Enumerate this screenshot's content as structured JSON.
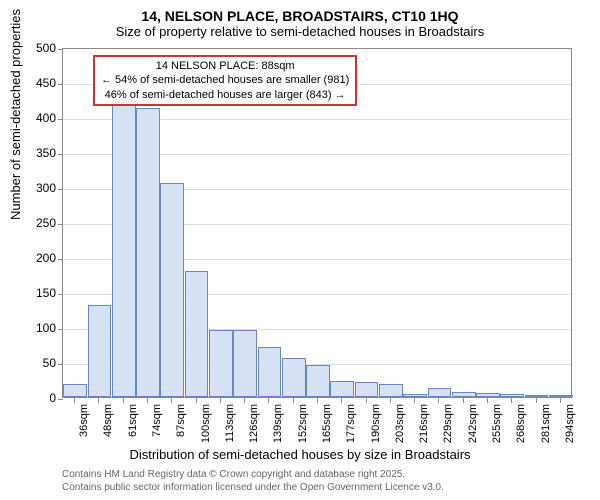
{
  "chart": {
    "type": "histogram",
    "title": "14, NELSON PLACE, BROADSTAIRS, CT10 1HQ",
    "subtitle": "Size of property relative to semi-detached houses in Broadstairs",
    "ylabel": "Number of semi-detached properties",
    "xlabel": "Distribution of semi-detached houses by size in Broadstairs",
    "ylim": [
      0,
      500
    ],
    "ytick_step": 50,
    "yticks": [
      0,
      50,
      100,
      150,
      200,
      250,
      300,
      350,
      400,
      450,
      500
    ],
    "categories": [
      "36sqm",
      "48sqm",
      "61sqm",
      "74sqm",
      "87sqm",
      "100sqm",
      "113sqm",
      "126sqm",
      "139sqm",
      "152sqm",
      "165sqm",
      "177sqm",
      "190sqm",
      "203sqm",
      "216sqm",
      "229sqm",
      "242sqm",
      "255sqm",
      "268sqm",
      "281sqm",
      "294sqm"
    ],
    "values": [
      18,
      132,
      418,
      413,
      306,
      180,
      96,
      96,
      71,
      56,
      46,
      23,
      21,
      19,
      5,
      13,
      7,
      6,
      5,
      3,
      3
    ],
    "bar_fill": "#d7e1f4",
    "bar_stroke": "#6a87c4",
    "grid_color": "#dddddd",
    "axis_color": "#888888",
    "background_color": "#ffffff",
    "callout": {
      "line1": "14 NELSON PLACE: 88sqm",
      "line2": "← 54% of semi-detached houses are smaller (981)",
      "line3": "46% of semi-detached houses are larger (843) →",
      "border_color": "#cc3333",
      "x_category_index": 4
    },
    "footnote1": "Contains HM Land Registry data © Crown copyright and database right 2025.",
    "footnote2": "Contains public sector information licensed under the Open Government Licence v3.0."
  }
}
